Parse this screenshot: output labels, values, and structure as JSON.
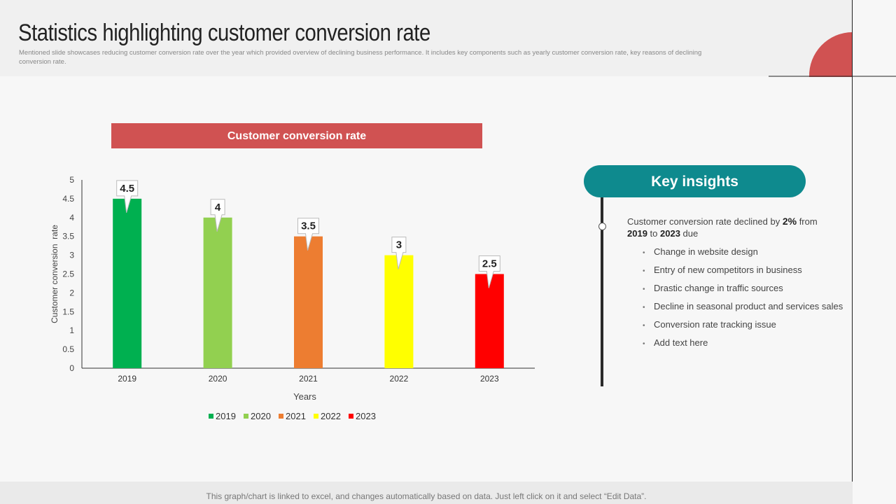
{
  "header": {
    "title": "Statistics highlighting customer conversion rate",
    "subtitle": "Mentioned slide showcases reducing customer conversion rate over the year which provided overview of declining business performance. It includes key components such as yearly customer conversion rate, key reasons of declining conversion rate."
  },
  "chart_banner": "Customer conversion rate",
  "chart_data": {
    "type": "bar",
    "categories": [
      "2019",
      "2020",
      "2021",
      "2022",
      "2023"
    ],
    "values": [
      4.5,
      4,
      3.5,
      3,
      2.5
    ],
    "value_labels": [
      "4.5",
      "4",
      "3.5",
      "3",
      "2.5"
    ],
    "colors": [
      "#00b050",
      "#92d050",
      "#ed7d31",
      "#ffff00",
      "#ff0000"
    ],
    "xlabel": "Years",
    "ylabel": "Customer conversion  rate",
    "ylim": [
      0,
      5
    ],
    "yticks": [
      "0",
      "0.5",
      "1",
      "1.5",
      "2",
      "2.5",
      "3",
      "3.5",
      "4",
      "4.5",
      "5"
    ],
    "legend": [
      "2019",
      "2020",
      "2021",
      "2022",
      "2023"
    ],
    "legend_position": "bottom",
    "grid": false
  },
  "insights": {
    "header": "Key insights",
    "summary_pre": "Customer conversion  rate declined by ",
    "summary_pct": "2%",
    "summary_mid": " from ",
    "summary_y1": "2019",
    "summary_to": " to ",
    "summary_y2": "2023",
    "summary_post": " due",
    "bullets": [
      "Change  in website design",
      "Entry of new competitors in business",
      "Drastic change in traffic sources",
      "Decline in seasonal product and services sales",
      "Conversion  rate tracking issue",
      "Add text here"
    ]
  },
  "footer": {
    "text": "This graph/chart is linked to excel,  and changes automatically based on data. Just left click on it and select “Edit Data”."
  },
  "colors": {
    "accent_red": "#d05252",
    "teal": "#0e8a8e"
  }
}
